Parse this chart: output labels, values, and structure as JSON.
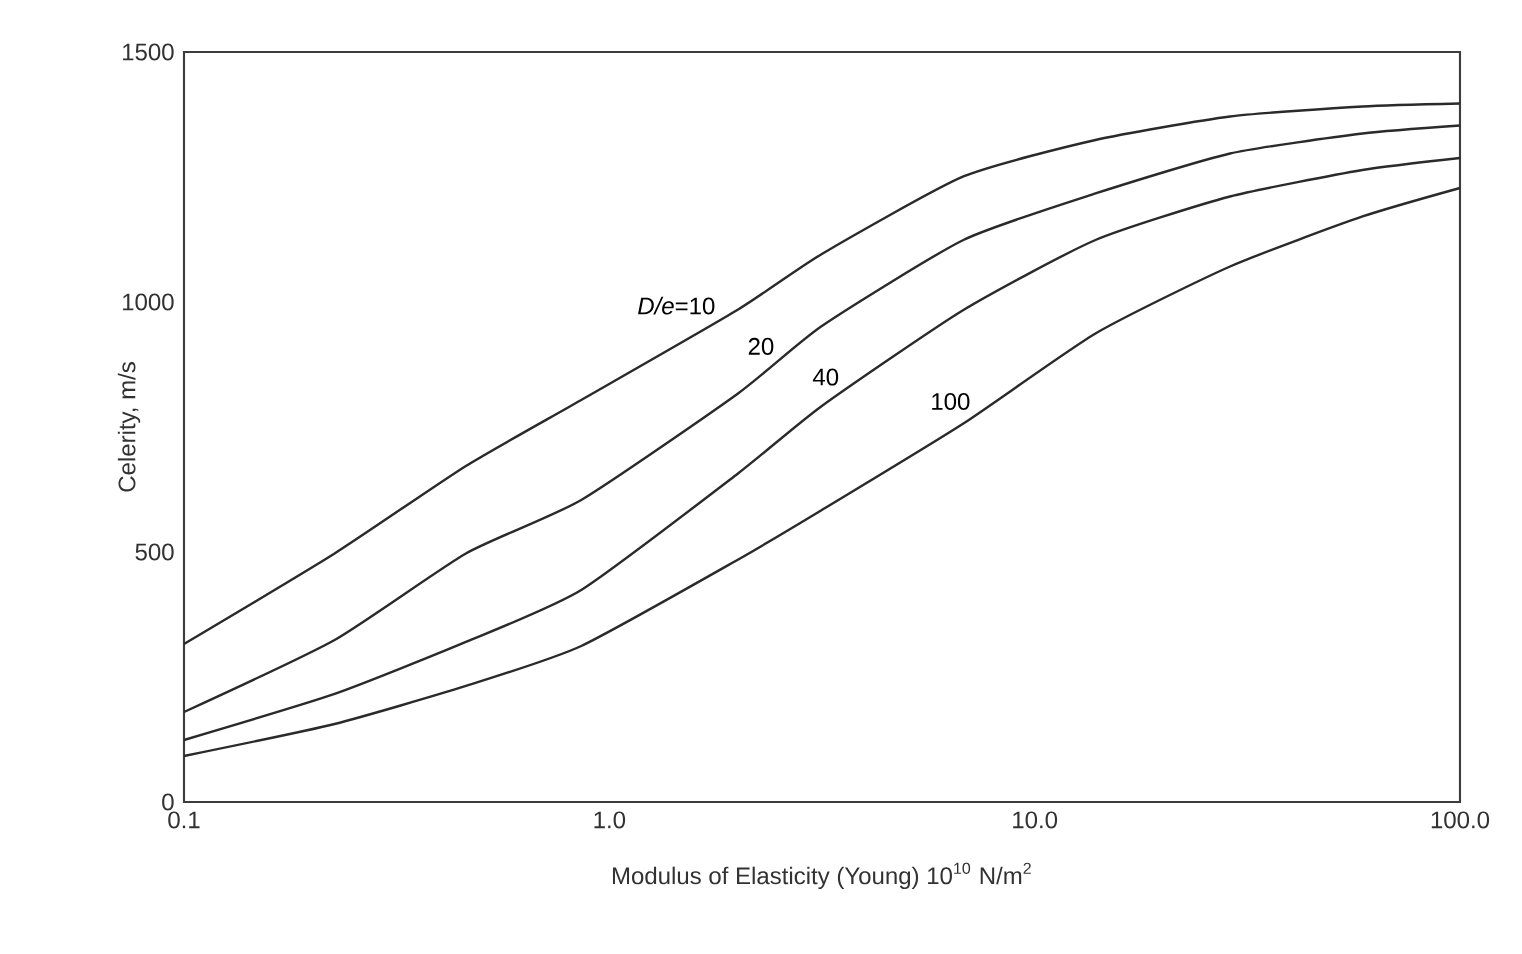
{
  "chart_data": {
    "type": "line",
    "xlabel": "Modulus of Elasticity (Young)  10$^{10}$ N/m$^{2}$",
    "ylabel": "Celerity, m/s",
    "log": "x",
    "xlim": [
      0.1,
      100
    ],
    "ylim": [
      0,
      1500
    ],
    "xticks": [
      0.1,
      {
        "value": 1,
        "label": "1.0"
      },
      {
        "value": 10,
        "label": "10.0"
      },
      {
        "value": 100,
        "label": "100.0"
      }
    ],
    "yticks": [
      0,
      500,
      1000,
      1500
    ],
    "grid": false,
    "marker": "none",
    "line_style": "solid",
    "series": [
      {
        "name": "*D/e*=10",
        "color": "#2a2a2a",
        "x": [
          0.1,
          0.226,
          0.46,
          0.859,
          2.0,
          3.16,
          6.8,
          13.9,
          28.8,
          59,
          100
        ],
        "values": [
          316,
          497,
          672,
          804,
          984,
          1096,
          1251,
          1324,
          1371,
          1391,
          1397
        ]
      },
      {
        "name": "20",
        "color": "#2a2a2a",
        "x": [
          0.1,
          0.226,
          0.46,
          0.859,
          2.0,
          3.16,
          6.8,
          13.9,
          28.8,
          59,
          100
        ],
        "values": [
          180,
          324,
          497,
          604,
          816,
          952,
          1124,
          1217,
          1297,
          1337,
          1353
        ]
      },
      {
        "name": "40",
        "color": "#2a2a2a",
        "x": [
          0.1,
          0.226,
          0.46,
          0.859,
          2.0,
          3.16,
          6.8,
          13.9,
          28.8,
          59,
          100
        ],
        "values": [
          124,
          216,
          320,
          424,
          656,
          792,
          984,
          1124,
          1211,
          1264,
          1288
        ]
      },
      {
        "name": "100",
        "color": "#2a2a2a",
        "x": [
          0.1,
          0.226,
          0.46,
          0.859,
          2.0,
          3.16,
          6.8,
          13.9,
          28.8,
          59,
          100
        ],
        "values": [
          92,
          156,
          232,
          312,
          484,
          584,
          757,
          937,
          1071,
          1171,
          1228
        ]
      }
    ]
  }
}
